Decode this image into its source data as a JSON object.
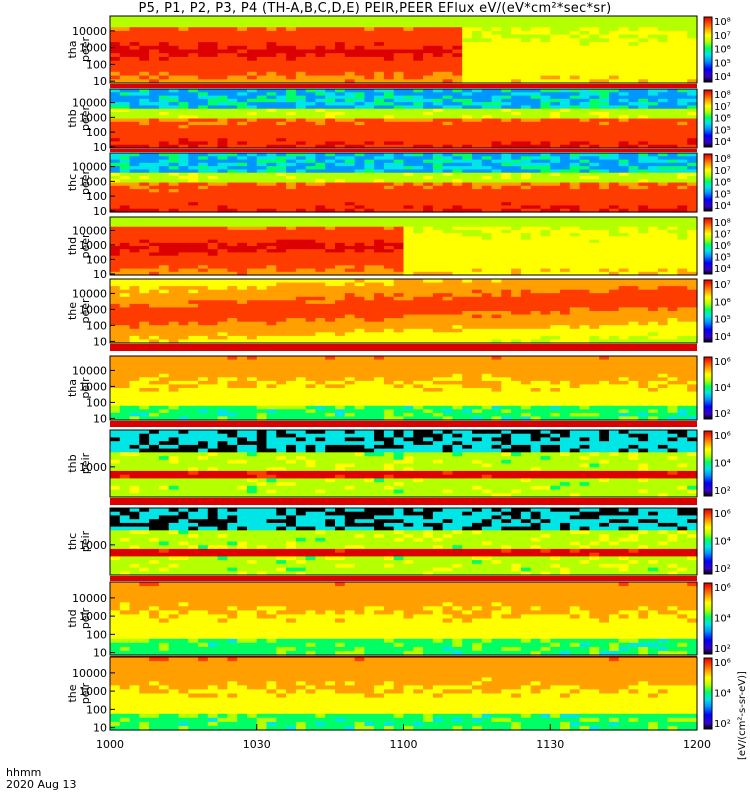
{
  "title": "P5, P1, P2, P3, P4 (TH-A,B,C,D,E) PEIR,PEER EFlux eV/(eV*cm²*sec*sr)",
  "colorbar_units": "[eV/(cm²-s-sr-eV)]",
  "footer": {
    "time_label": "hhmm",
    "date": "2020 Aug 13"
  },
  "colors": {
    "scale": [
      "#000000",
      "#3a00c8",
      "#0000ff",
      "#0096ff",
      "#00e6e6",
      "#00ff64",
      "#b4ff00",
      "#ffff00",
      "#ffa000",
      "#ff3c00",
      "#dc0000"
    ]
  },
  "chart_data": {
    "type": "heatmap",
    "x_ticks": [
      "1000",
      "1030",
      "1100",
      "1130",
      "1200"
    ],
    "panels": [
      {
        "name": "tha peer",
        "probe": "tha",
        "species": "peer",
        "y_ticks": [
          "10",
          "100",
          "1000",
          "10000"
        ],
        "cb_ticks": [
          "10⁴",
          "10⁵",
          "10⁶",
          "10⁷",
          "10⁸"
        ]
      },
      {
        "name": "thb peer",
        "probe": "thb",
        "species": "peer",
        "y_ticks": [
          "10",
          "100",
          "1000",
          "10000"
        ],
        "cb_ticks": [
          "10⁴",
          "10⁵",
          "10⁶",
          "10⁷",
          "10⁸"
        ]
      },
      {
        "name": "thc peer",
        "probe": "thc",
        "species": "peer",
        "y_ticks": [
          "10",
          "100",
          "1000",
          "10000"
        ],
        "cb_ticks": [
          "10⁴",
          "10⁵",
          "10⁶",
          "10⁷",
          "10⁸"
        ]
      },
      {
        "name": "thd peer",
        "probe": "thd",
        "species": "peer",
        "y_ticks": [
          "10",
          "100",
          "1000",
          "10000"
        ],
        "cb_ticks": [
          "10⁴",
          "10⁵",
          "10⁶",
          "10⁷",
          "10⁸"
        ]
      },
      {
        "name": "the peer",
        "probe": "the",
        "species": "peer",
        "y_ticks": [
          "10",
          "100",
          "1000",
          "10000"
        ],
        "cb_ticks": [
          "10⁴",
          "10⁵",
          "10⁶",
          "10⁷"
        ]
      },
      {
        "name": "tha peir",
        "probe": "tha",
        "species": "peir",
        "y_ticks": [
          "10",
          "100",
          "1000",
          "10000"
        ],
        "cb_ticks": [
          "10²",
          "10⁴",
          "10⁶"
        ]
      },
      {
        "name": "thb peir",
        "probe": "thb",
        "species": "peir",
        "y_ticks": [
          "1000"
        ],
        "cb_ticks": [
          "10²",
          "10⁴",
          "10⁶"
        ]
      },
      {
        "name": "thc peir",
        "probe": "thc",
        "species": "peir",
        "y_ticks": [
          "1000"
        ],
        "cb_ticks": [
          "10²",
          "10⁴",
          "10⁶"
        ]
      },
      {
        "name": "thd peir",
        "probe": "thd",
        "species": "peir",
        "y_ticks": [
          "10",
          "100",
          "1000",
          "10000"
        ],
        "cb_ticks": [
          "10²",
          "10⁴",
          "10⁶"
        ]
      },
      {
        "name": "the peir",
        "probe": "the",
        "species": "peir",
        "y_ticks": [
          "10",
          "100",
          "1000",
          "10000"
        ],
        "cb_ticks": [
          "10²",
          "10⁴",
          "10⁶"
        ]
      }
    ]
  }
}
